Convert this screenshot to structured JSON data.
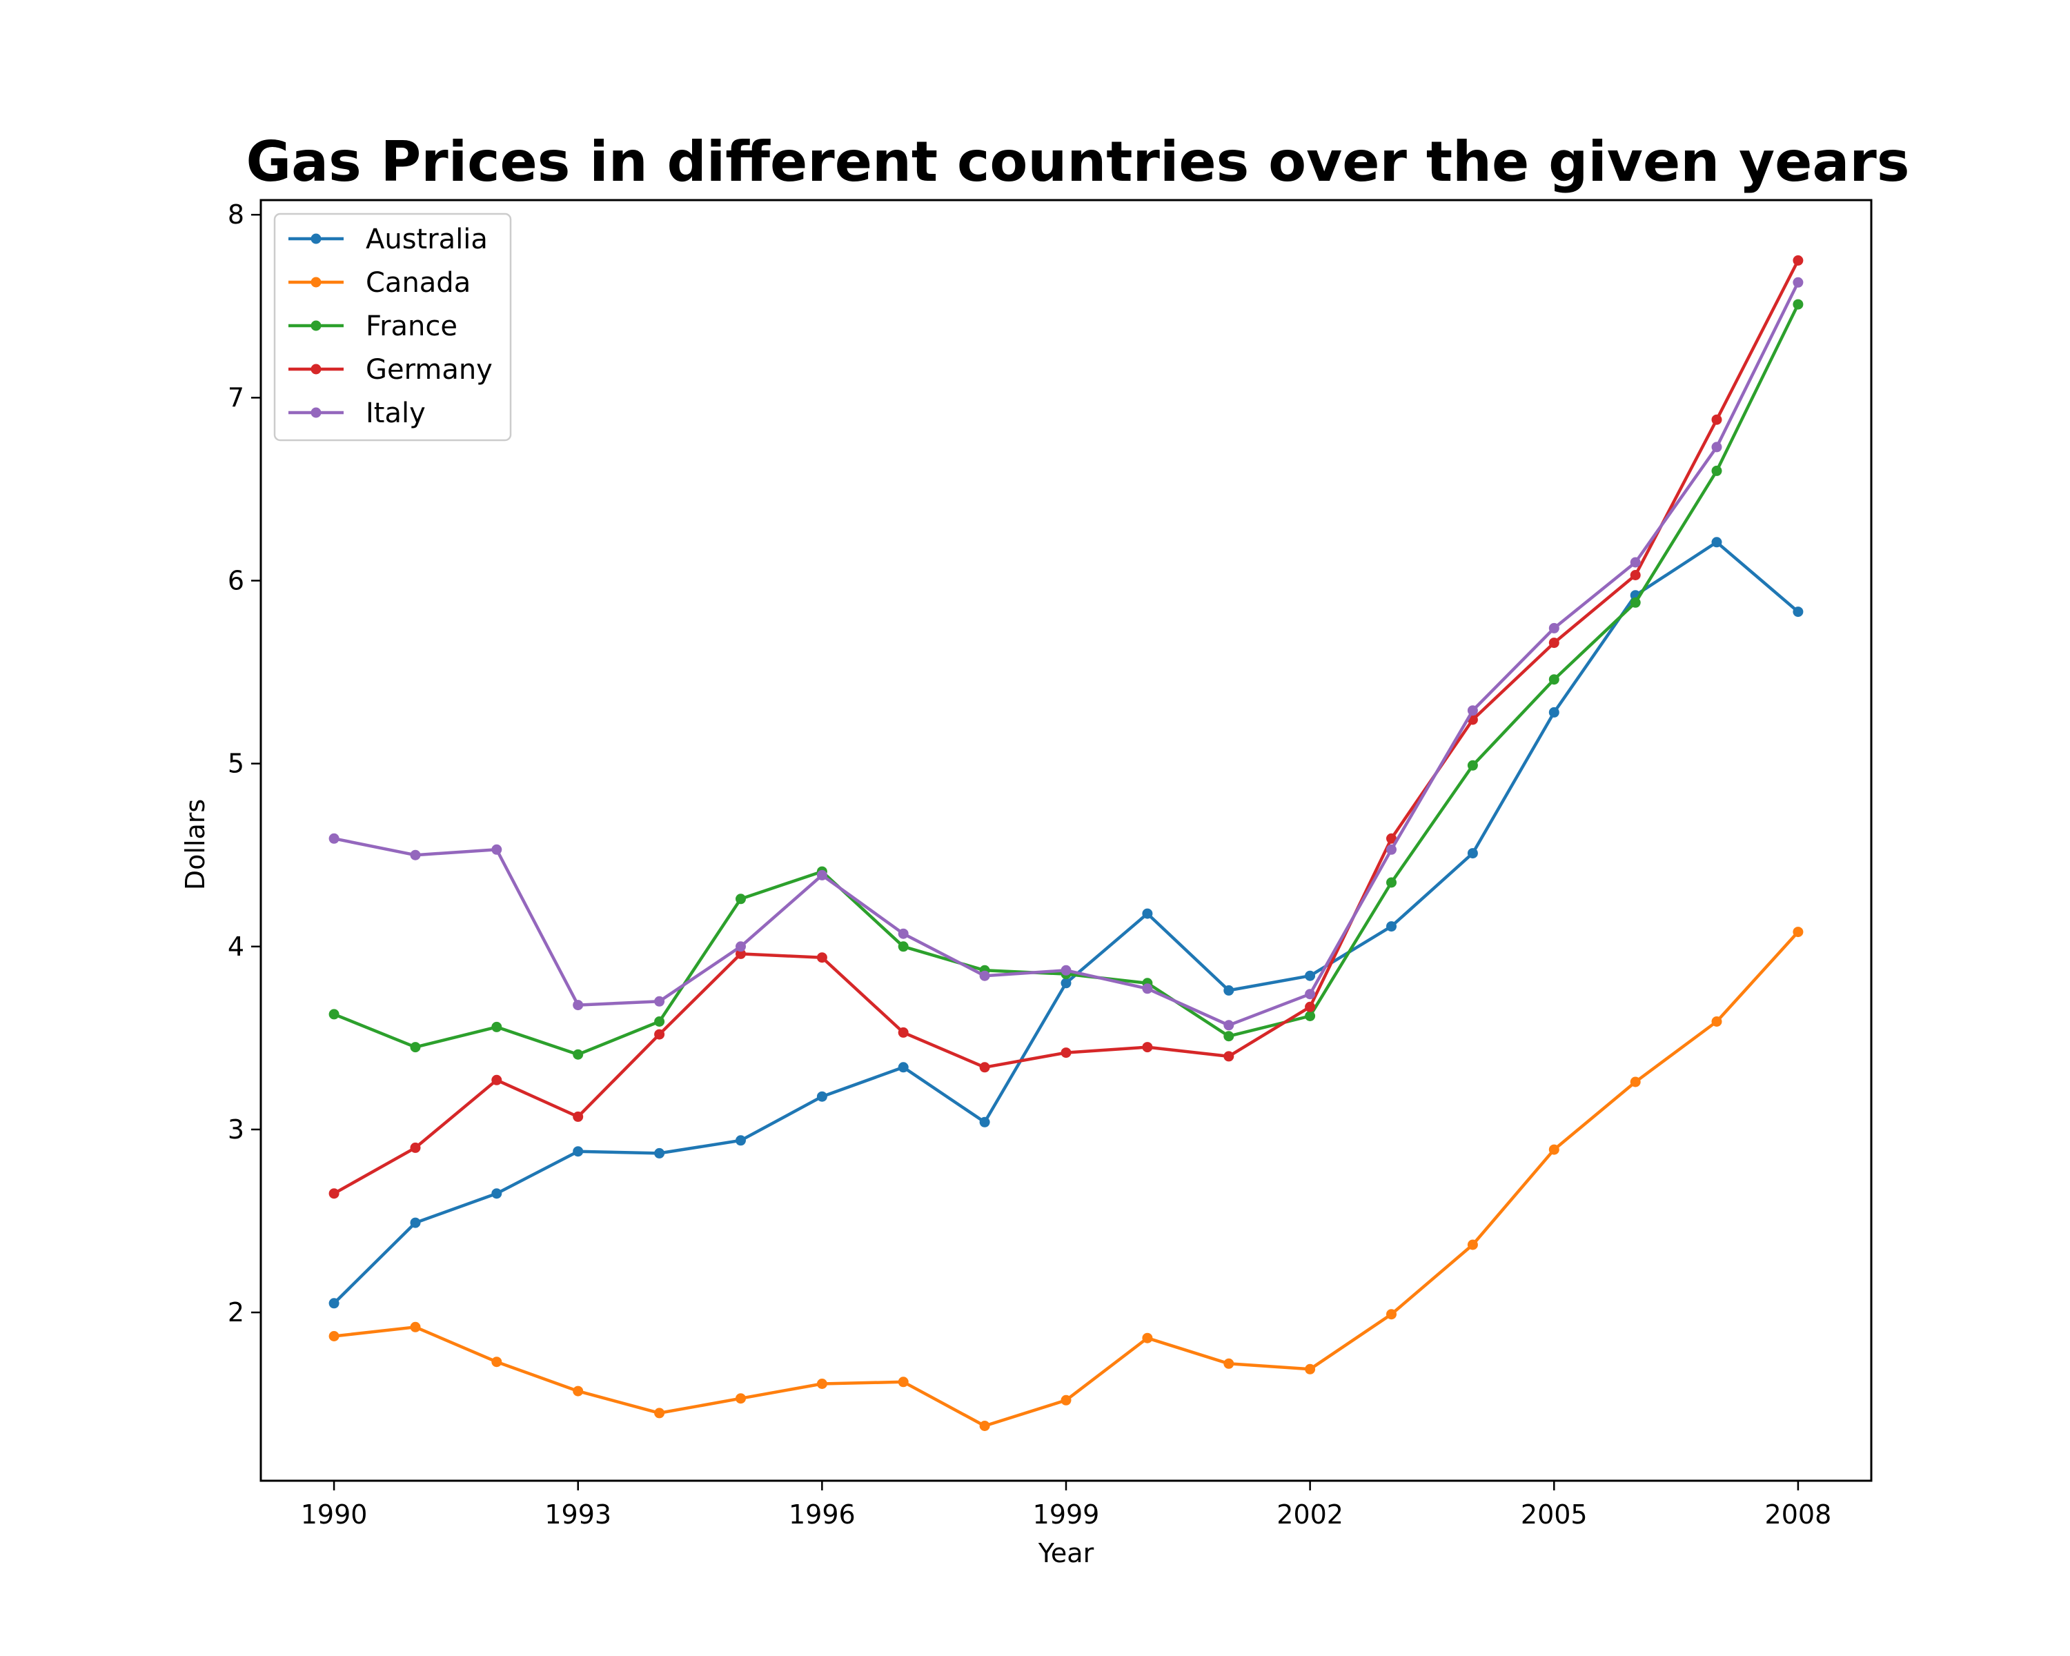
{
  "chart_data": {
    "type": "line",
    "title": "Gas Prices in different countries over the given years",
    "xlabel": "Year",
    "ylabel": "Dollars",
    "x": [
      1990,
      1991,
      1992,
      1993,
      1994,
      1995,
      1996,
      1997,
      1998,
      1999,
      2000,
      2001,
      2002,
      2003,
      2004,
      2005,
      2006,
      2007,
      2008
    ],
    "xticks": [
      1990,
      1993,
      1996,
      1999,
      2002,
      2005,
      2008
    ],
    "yticks": [
      2,
      3,
      4,
      5,
      6,
      7,
      8
    ],
    "xlim": [
      1989.1,
      2008.9
    ],
    "ylim": [
      1.08,
      8.08
    ],
    "grid": false,
    "legend_position": "top-left",
    "marker": "circle",
    "series": [
      {
        "name": "Australia",
        "color": "#1f77b4",
        "values": [
          2.05,
          2.49,
          2.65,
          2.88,
          2.87,
          2.94,
          3.18,
          3.34,
          3.04,
          3.8,
          4.18,
          3.76,
          3.84,
          4.11,
          4.51,
          5.28,
          5.92,
          6.21,
          5.83
        ]
      },
      {
        "name": "Canada",
        "color": "#ff7f0e",
        "values": [
          1.87,
          1.92,
          1.73,
          1.57,
          1.45,
          1.53,
          1.61,
          1.62,
          1.38,
          1.52,
          1.86,
          1.72,
          1.69,
          1.99,
          2.37,
          2.89,
          3.26,
          3.59,
          4.08
        ]
      },
      {
        "name": "France",
        "color": "#2ca02c",
        "values": [
          3.63,
          3.45,
          3.56,
          3.41,
          3.59,
          4.26,
          4.41,
          4.0,
          3.87,
          3.85,
          3.8,
          3.51,
          3.62,
          4.35,
          4.99,
          5.46,
          5.88,
          6.6,
          7.51
        ]
      },
      {
        "name": "Germany",
        "color": "#d62728",
        "values": [
          2.65,
          2.9,
          3.27,
          3.07,
          3.52,
          3.96,
          3.94,
          3.53,
          3.34,
          3.42,
          3.45,
          3.4,
          3.67,
          4.59,
          5.24,
          5.66,
          6.03,
          6.88,
          7.75
        ]
      },
      {
        "name": "Italy",
        "color": "#9467bd",
        "values": [
          4.59,
          4.5,
          4.53,
          3.68,
          3.7,
          4.0,
          4.39,
          4.07,
          3.84,
          3.87,
          3.77,
          3.57,
          3.74,
          4.53,
          5.29,
          5.74,
          6.1,
          6.73,
          7.63
        ]
      }
    ]
  }
}
